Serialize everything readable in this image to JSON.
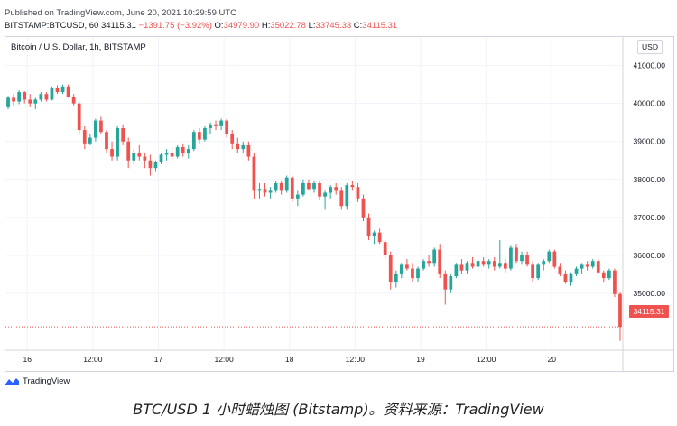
{
  "header": {
    "published": "Published on TradingView.com, June 20, 2021 10:29:59 UTC",
    "symbol": "BITSTAMP:BTCUSD, 60",
    "last": "34115.31",
    "change": "−1391.75 (−3.92%)",
    "o_label": "O:",
    "o": "34979.90",
    "h_label": "H:",
    "h": "35022.78",
    "l_label": "L:",
    "l": "33745.33",
    "c_label": "C:",
    "c": "34115.31"
  },
  "legend": "Bitcoin / U.S. Dollar, 1h, BITSTAMP",
  "currency": "USD",
  "logo_text": "TradingView",
  "caption": "BTC/USD 1 小时蜡烛图 (Bitstamp)。资料来源：TradingView",
  "colors": {
    "up": "#26a69a",
    "down": "#ef5350",
    "grid": "#f0f3fa",
    "axis_text": "#131722"
  },
  "chart_data": {
    "type": "candlestick",
    "title": "Bitcoin / U.S. Dollar, 1h, BITSTAMP",
    "ylim": [
      33500,
      41300
    ],
    "yticks": [
      41000,
      40000,
      39000,
      38000,
      37000,
      36000,
      35000
    ],
    "ytick_labels": [
      "41000.00",
      "40000.00",
      "39000.00",
      "38000.00",
      "37000.00",
      "36000.00",
      "35000.00"
    ],
    "xlim": [
      0,
      113
    ],
    "xticks": [
      {
        "x": 4,
        "label": "16"
      },
      {
        "x": 16,
        "label": "12:00"
      },
      {
        "x": 28,
        "label": "17"
      },
      {
        "x": 40,
        "label": "12:00"
      },
      {
        "x": 52,
        "label": "18"
      },
      {
        "x": 64,
        "label": "12:00"
      },
      {
        "x": 76,
        "label": "19"
      },
      {
        "x": 88,
        "label": "12:00"
      },
      {
        "x": 100,
        "label": "20"
      }
    ],
    "last_price": 34115.31,
    "last_price_label": "34115.31",
    "candles": [
      [
        39900,
        40200,
        39850,
        40150
      ],
      [
        40150,
        40250,
        39950,
        40050
      ],
      [
        40050,
        40350,
        39980,
        40300
      ],
      [
        40300,
        40320,
        40000,
        40100
      ],
      [
        40100,
        40250,
        39900,
        40000
      ],
      [
        40000,
        40150,
        39850,
        40100
      ],
      [
        40100,
        40300,
        40050,
        40250
      ],
      [
        40250,
        40300,
        40050,
        40100
      ],
      [
        40100,
        40450,
        40080,
        40400
      ],
      [
        40400,
        40480,
        40250,
        40300
      ],
      [
        40300,
        40500,
        40250,
        40450
      ],
      [
        40450,
        40500,
        40150,
        40180
      ],
      [
        40180,
        40250,
        39950,
        40000
      ],
      [
        40000,
        40050,
        39200,
        39300
      ],
      [
        39300,
        39400,
        38800,
        38950
      ],
      [
        38950,
        39200,
        38900,
        39100
      ],
      [
        39100,
        39600,
        39000,
        39550
      ],
      [
        39550,
        39650,
        39200,
        39250
      ],
      [
        39250,
        39300,
        38700,
        38800
      ],
      [
        38800,
        39000,
        38500,
        38600
      ],
      [
        38600,
        39400,
        38500,
        39350
      ],
      [
        39350,
        39450,
        38900,
        39000
      ],
      [
        39000,
        39100,
        38300,
        38500
      ],
      [
        38500,
        38800,
        38400,
        38700
      ],
      [
        38700,
        38900,
        38500,
        38600
      ],
      [
        38600,
        38700,
        38300,
        38500
      ],
      [
        38500,
        38650,
        38100,
        38300
      ],
      [
        38300,
        38500,
        38200,
        38450
      ],
      [
        38450,
        38700,
        38400,
        38650
      ],
      [
        38650,
        38800,
        38500,
        38700
      ],
      [
        38700,
        38850,
        38500,
        38600
      ],
      [
        38600,
        38900,
        38550,
        38850
      ],
      [
        38850,
        38950,
        38600,
        38700
      ],
      [
        38700,
        38900,
        38550,
        38800
      ],
      [
        38800,
        39300,
        38750,
        39250
      ],
      [
        39250,
        39350,
        38950,
        39050
      ],
      [
        39050,
        39400,
        39000,
        39350
      ],
      [
        39350,
        39500,
        39200,
        39450
      ],
      [
        39450,
        39550,
        39300,
        39400
      ],
      [
        39400,
        39600,
        39300,
        39550
      ],
      [
        39550,
        39600,
        39100,
        39200
      ],
      [
        39200,
        39300,
        38800,
        38950
      ],
      [
        38950,
        39100,
        38700,
        38800
      ],
      [
        38800,
        39000,
        38700,
        38900
      ],
      [
        38900,
        39000,
        38500,
        38600
      ],
      [
        38600,
        38700,
        37500,
        37700
      ],
      [
        37700,
        37900,
        37500,
        37750
      ],
      [
        37750,
        37900,
        37550,
        37650
      ],
      [
        37650,
        37800,
        37500,
        37700
      ],
      [
        37700,
        37950,
        37650,
        37900
      ],
      [
        37900,
        37950,
        37600,
        37700
      ],
      [
        37700,
        38100,
        37650,
        38050
      ],
      [
        38050,
        38100,
        37400,
        37500
      ],
      [
        37500,
        37700,
        37300,
        37600
      ],
      [
        37600,
        38000,
        37550,
        37900
      ],
      [
        37900,
        38000,
        37700,
        37750
      ],
      [
        37750,
        37950,
        37650,
        37900
      ],
      [
        37900,
        37950,
        37450,
        37550
      ],
      [
        37550,
        37700,
        37200,
        37650
      ],
      [
        37650,
        37850,
        37500,
        37800
      ],
      [
        37800,
        37900,
        37600,
        37700
      ],
      [
        37700,
        37800,
        37200,
        37300
      ],
      [
        37300,
        37900,
        37200,
        37850
      ],
      [
        37850,
        37950,
        37700,
        37800
      ],
      [
        37800,
        37900,
        37400,
        37500
      ],
      [
        37500,
        37600,
        36900,
        37000
      ],
      [
        37000,
        37100,
        36400,
        36500
      ],
      [
        36500,
        36650,
        36300,
        36600
      ],
      [
        36600,
        36700,
        36300,
        36350
      ],
      [
        36350,
        36400,
        35900,
        36000
      ],
      [
        36000,
        36100,
        35100,
        35300
      ],
      [
        35300,
        35600,
        35150,
        35500
      ],
      [
        35500,
        35800,
        35400,
        35750
      ],
      [
        35750,
        35900,
        35600,
        35650
      ],
      [
        35650,
        35800,
        35300,
        35400
      ],
      [
        35400,
        35700,
        35300,
        35650
      ],
      [
        35650,
        35900,
        35600,
        35850
      ],
      [
        35850,
        36000,
        35700,
        35800
      ],
      [
        35800,
        36200,
        35700,
        36150
      ],
      [
        36150,
        36300,
        35400,
        35500
      ],
      [
        35500,
        35600,
        34700,
        35100
      ],
      [
        35100,
        35500,
        35000,
        35450
      ],
      [
        35450,
        35800,
        35400,
        35750
      ],
      [
        35750,
        35900,
        35500,
        35600
      ],
      [
        35600,
        35850,
        35500,
        35800
      ],
      [
        35800,
        35950,
        35650,
        35700
      ],
      [
        35700,
        35900,
        35600,
        35850
      ],
      [
        35850,
        35950,
        35700,
        35750
      ],
      [
        35750,
        35900,
        35650,
        35850
      ],
      [
        35850,
        35950,
        35600,
        35700
      ],
      [
        35700,
        36400,
        35650,
        35800
      ],
      [
        35800,
        35900,
        35550,
        35650
      ],
      [
        35650,
        36250,
        35600,
        36200
      ],
      [
        36200,
        36300,
        35800,
        35850
      ],
      [
        35850,
        36100,
        35750,
        36000
      ],
      [
        36000,
        36100,
        35700,
        35750
      ],
      [
        35750,
        35850,
        35300,
        35400
      ],
      [
        35400,
        35800,
        35350,
        35750
      ],
      [
        35750,
        35900,
        35600,
        35850
      ],
      [
        35850,
        36150,
        35800,
        36100
      ],
      [
        36100,
        36150,
        35650,
        35700
      ],
      [
        35700,
        35800,
        35450,
        35500
      ],
      [
        35500,
        35600,
        35250,
        35300
      ],
      [
        35300,
        35550,
        35200,
        35500
      ],
      [
        35500,
        35700,
        35450,
        35650
      ],
      [
        35650,
        35800,
        35500,
        35750
      ],
      [
        35750,
        35850,
        35600,
        35700
      ],
      [
        35700,
        35900,
        35650,
        35850
      ],
      [
        35850,
        35900,
        35500,
        35550
      ],
      [
        35550,
        35600,
        35300,
        35400
      ],
      [
        35400,
        35650,
        35350,
        35600
      ],
      [
        35600,
        35650,
        34900,
        34980
      ],
      [
        34980,
        35020,
        33745,
        34115
      ]
    ]
  }
}
